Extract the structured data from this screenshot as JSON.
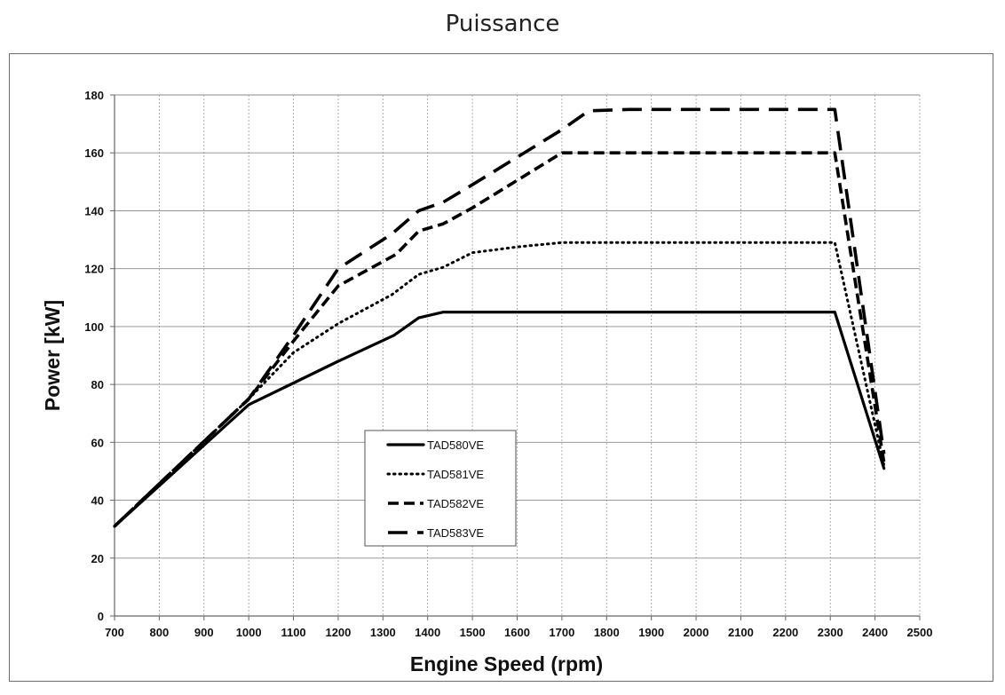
{
  "page": {
    "title": "Puissance"
  },
  "chart_data": {
    "type": "line",
    "title": "Puissance",
    "xlabel": "Engine Speed (rpm)",
    "ylabel": "Power [kW]",
    "xlim": [
      700,
      2500
    ],
    "ylim": [
      0,
      180
    ],
    "xticks": [
      700,
      800,
      900,
      1000,
      1100,
      1200,
      1300,
      1400,
      1500,
      1600,
      1700,
      1800,
      1900,
      2000,
      2100,
      2200,
      2300,
      2400,
      2500
    ],
    "yticks": [
      0,
      20,
      40,
      60,
      80,
      100,
      120,
      140,
      160,
      180
    ],
    "grid": true,
    "legend_position": "lower-left inside plot",
    "series": [
      {
        "name": "TAD580VE",
        "style": "solid",
        "color": "#000000",
        "x": [
          700,
          1000,
          1100,
          1200,
          1325,
          1380,
          1435,
          1600,
          1800,
          2000,
          2200,
          2310,
          2420
        ],
        "y": [
          31,
          73,
          80.5,
          88,
          97,
          103,
          105,
          105,
          105,
          105,
          105,
          105,
          51
        ]
      },
      {
        "name": "TAD581VE",
        "style": "dotted",
        "color": "#000000",
        "x": [
          700,
          1000,
          1100,
          1200,
          1320,
          1380,
          1435,
          1500,
          1600,
          1700,
          1800,
          2000,
          2200,
          2310,
          2420
        ],
        "y": [
          31,
          75,
          91,
          101,
          111,
          118,
          120.5,
          125.5,
          127.5,
          129,
          129,
          129,
          129,
          129,
          52
        ]
      },
      {
        "name": "TAD582VE",
        "style": "dashed",
        "color": "#000000",
        "x": [
          700,
          1000,
          1100,
          1200,
          1330,
          1380,
          1435,
          1500,
          1600,
          1700,
          1800,
          2000,
          2200,
          2310,
          2420
        ],
        "y": [
          31,
          75,
          95,
          114,
          125,
          133,
          135.5,
          141,
          150.5,
          160,
          160,
          160,
          160,
          160,
          53
        ]
      },
      {
        "name": "TAD583VE",
        "style": "long-dashed",
        "color": "#000000",
        "x": [
          700,
          1000,
          1100,
          1200,
          1320,
          1380,
          1435,
          1500,
          1600,
          1700,
          1760,
          1850,
          2000,
          2200,
          2310,
          2420
        ],
        "y": [
          31,
          75,
          97,
          120,
          132,
          140,
          143,
          149,
          158.5,
          168,
          174.5,
          175,
          175,
          175,
          175,
          56
        ]
      }
    ]
  }
}
